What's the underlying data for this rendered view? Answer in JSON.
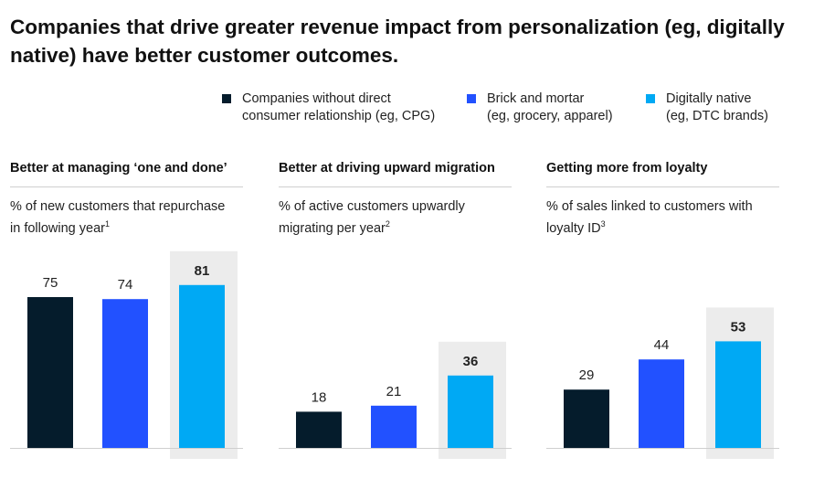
{
  "title": "Companies that drive greater revenue impact from personalization (eg, digitally native) have better customer outcomes.",
  "legend": [
    {
      "line1": "Companies without direct",
      "line2": "consumer relationship (eg, CPG)",
      "color": "#051c2c"
    },
    {
      "line1": "Brick and mortar",
      "line2": "(eg, grocery, apparel)",
      "color": "#2251ff"
    },
    {
      "line1": "Digitally native",
      "line2": "(eg, DTC brands)",
      "color": "#00a9f4"
    }
  ],
  "panels": [
    {
      "title": "Better at managing ‘one and done’",
      "subtitle_line1": "% of new customers that repurchase",
      "subtitle_line2": "in following year",
      "footnote": "1"
    },
    {
      "title": "Better at driving upward migration",
      "subtitle_line1": "% of active customers upwardly",
      "subtitle_line2": "migrating per year",
      "footnote": "2"
    },
    {
      "title": "Getting more from loyalty",
      "subtitle_line1": "% of sales linked to customers with",
      "subtitle_line2": "loyalty ID",
      "footnote": "3"
    }
  ],
  "chart_data": [
    {
      "type": "bar",
      "title": "Better at managing ‘one and done’",
      "ylabel": "% of new customers that repurchase in following year",
      "categories": [
        "Companies without direct consumer relationship (eg, CPG)",
        "Brick and mortar (eg, grocery, apparel)",
        "Digitally native (eg, DTC brands)"
      ],
      "values": [
        75,
        74,
        81
      ],
      "highlight_index": 2,
      "ylim": [
        0,
        100
      ]
    },
    {
      "type": "bar",
      "title": "Better at driving upward migration",
      "ylabel": "% of active customers upwardly migrating per year",
      "categories": [
        "Companies without direct consumer relationship (eg, CPG)",
        "Brick and mortar (eg, grocery, apparel)",
        "Digitally native (eg, DTC brands)"
      ],
      "values": [
        18,
        21,
        36
      ],
      "highlight_index": 2,
      "ylim": [
        0,
        100
      ]
    },
    {
      "type": "bar",
      "title": "Getting more from loyalty",
      "ylabel": "% of sales linked to customers with loyalty ID",
      "categories": [
        "Companies without direct consumer relationship (eg, CPG)",
        "Brick and mortar (eg, grocery, apparel)",
        "Digitally native (eg, DTC brands)"
      ],
      "values": [
        29,
        44,
        53
      ],
      "highlight_index": 2,
      "ylim": [
        0,
        100
      ]
    }
  ],
  "colors": {
    "series": [
      "#051c2c",
      "#2251ff",
      "#00a9f4"
    ],
    "highlight_bg": "#ececec",
    "axis": "#cfcfcf"
  }
}
